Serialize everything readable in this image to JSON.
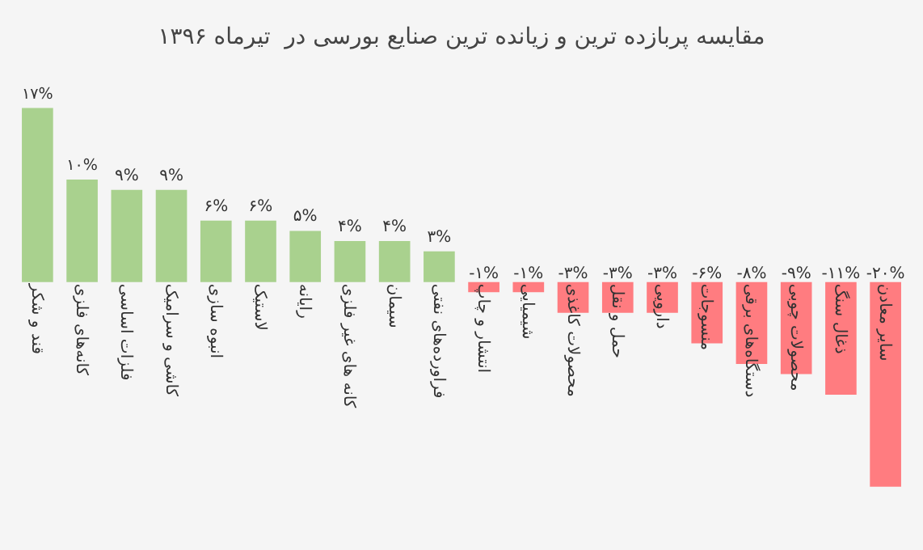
{
  "chart_data": {
    "type": "bar",
    "title": "مقایسه پربازده ترین و زیانده ترین صنایع بورسی در  تیرماه ۱۳۹۶",
    "categories": [
      "قند و شکر",
      "کانه‌های فلزی",
      "فلزات اساسی",
      "کاشی و سرامیک",
      "انبوه سازی",
      "لاستیک",
      "رایانه",
      "کانه های غیر فلزی",
      "سیمان",
      "فراورده‌های نفتی",
      "انتشار و چاپ",
      "شیمیایی",
      "محصولات کاغذی",
      "حمل و نقل",
      "دارویی",
      "منسوجات",
      "دستگاه‌های برقی",
      "محصولات چوبی",
      "ذغال سنگ",
      "سایر معادن"
    ],
    "values": [
      17,
      10,
      9,
      9,
      6,
      6,
      5,
      4,
      4,
      3,
      -1,
      -1,
      -3,
      -3,
      -3,
      -6,
      -8,
      -9,
      -11,
      -20
    ],
    "value_labels": [
      "۱۷%",
      "۱۰%",
      "۹%",
      "۹%",
      "۶%",
      "۶%",
      "۵%",
      "۴%",
      "۴%",
      "۳%",
      "-۱%",
      "-۱%",
      "-۳%",
      "-۳%",
      "-۳%",
      "-۶%",
      "-۸%",
      "-۹%",
      "-۱۱%",
      "-۲۰%"
    ],
    "colors": [
      "#a9d18e",
      "#a9d18e",
      "#a9d18e",
      "#a9d18e",
      "#a9d18e",
      "#a9d18e",
      "#a9d18e",
      "#a9d18e",
      "#a9d18e",
      "#a9d18e",
      "#ff7c80",
      "#ff7c80",
      "#ff7c80",
      "#ff7c80",
      "#ff7c80",
      "#ff7c80",
      "#ff7c80",
      "#ff7c80",
      "#ff7c80",
      "#ff7c80"
    ],
    "grid": false
  }
}
